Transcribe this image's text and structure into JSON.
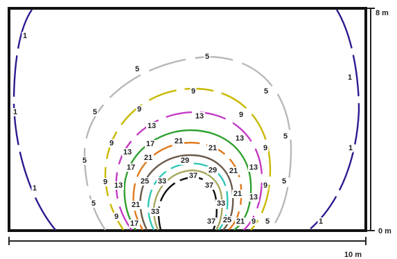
{
  "scale": {
    "height_top_label": "8 m",
    "height_bottom_label": "0 m",
    "width_label": "10 m"
  },
  "contours": [
    {
      "level": 1,
      "label": "1",
      "color": "#2b1a8f"
    },
    {
      "level": 5,
      "label": "5",
      "color": "#b8b8b8"
    },
    {
      "level": 9,
      "label": "9",
      "color": "#c9b800"
    },
    {
      "level": 13,
      "label": "13",
      "color": "#c43ac4"
    },
    {
      "level": 17,
      "label": "17",
      "color": "#2ea02e"
    },
    {
      "level": 21,
      "label": "21",
      "color": "#e07a1c"
    },
    {
      "level": 25,
      "label": "25",
      "color": "#6b5a4a"
    },
    {
      "level": 29,
      "label": "29",
      "color": "#2ec8b4"
    },
    {
      "level": 33,
      "label": "33",
      "color": "#a8a860"
    },
    {
      "level": 37,
      "label": "37",
      "color": "#111111"
    }
  ]
}
